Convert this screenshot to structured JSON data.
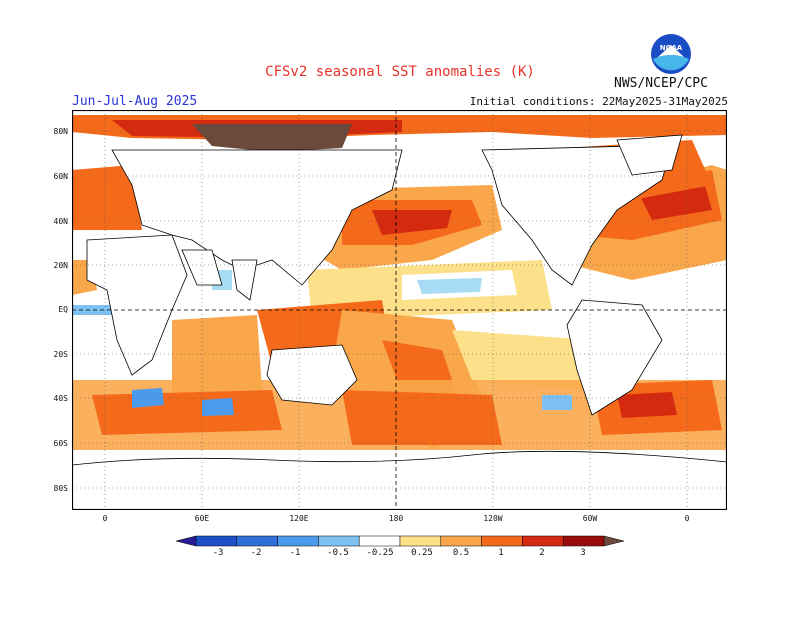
{
  "header": {
    "title": "CFSv2 seasonal SST anomalies (K)",
    "season": "Jun-Jul-Aug 2025",
    "initial_conditions": "Initial conditions: 22May2025-31May2025",
    "agency": "NWS/NCEP/CPC",
    "logo_text": "NOAA"
  },
  "map": {
    "lat_labels": [
      "80N",
      "60N",
      "40N",
      "20N",
      "EQ",
      "20S",
      "40S",
      "60S",
      "80S"
    ],
    "lon_labels": [
      "0",
      "60E",
      "120E",
      "180",
      "120W",
      "60W",
      "0"
    ],
    "grid": "dotted",
    "land_color": "#ffffff",
    "coastline_color": "#000000"
  },
  "colorbar": {
    "labels": [
      "-3",
      "-2",
      "-1",
      "-0.5",
      "-0.25",
      "0.25",
      "0.5",
      "1",
      "2",
      "3"
    ],
    "colors": [
      "#2a1e98",
      "#1e4fc7",
      "#2f6fd8",
      "#4c9aec",
      "#7ec1f2",
      "#ffffff",
      "#fde08a",
      "#f9a74a",
      "#f46a1a",
      "#d42a10",
      "#9a0c0c",
      "#6b4a3c"
    ]
  },
  "colors": {
    "title": "#e8342a",
    "season": "#2a37d8",
    "pos_weak": "#fde08a",
    "pos_mid": "#f9a74a",
    "pos_strong": "#f46a1a",
    "pos_vstrong": "#d42a10",
    "neg_weak": "#a8dcf5",
    "neg_mid": "#4c9aec"
  }
}
